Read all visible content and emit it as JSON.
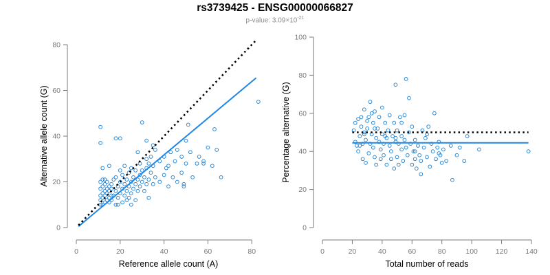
{
  "header": {
    "title": "rs3739425 - ENSG00000066827",
    "pvalue_prefix": "p-value: 3.09×10",
    "pvalue_exp": "-21"
  },
  "colors": {
    "points": "#2b8ad6",
    "fit_line": "#1f86e6",
    "ref_line": "#000000",
    "axis": "#7a7a7a"
  },
  "chart_data": [
    {
      "type": "scatter",
      "xlabel": "Reference allele count (A)",
      "ylabel": "Alternative allele count (G)",
      "xlim": [
        0,
        84
      ],
      "ylim": [
        0,
        80
      ],
      "xticks": [
        0,
        20,
        40,
        60,
        80
      ],
      "yticks": [
        0,
        20,
        40,
        60,
        80
      ],
      "grid": false,
      "reference_line": {
        "style": "dotted",
        "x": [
          1,
          82
        ],
        "y": [
          1,
          82
        ]
      },
      "fit_line": {
        "style": "solid",
        "x": [
          1,
          82
        ],
        "y": [
          0.5,
          65.5
        ]
      },
      "points": [
        [
          11,
          10
        ],
        [
          11,
          12
        ],
        [
          11,
          14
        ],
        [
          11,
          17
        ],
        [
          11,
          20
        ],
        [
          12,
          10
        ],
        [
          12,
          13
        ],
        [
          12,
          15
        ],
        [
          12,
          18
        ],
        [
          12,
          21
        ],
        [
          13,
          11
        ],
        [
          13,
          14
        ],
        [
          13,
          16
        ],
        [
          13,
          19
        ],
        [
          13,
          21
        ],
        [
          14,
          12
        ],
        [
          14,
          15
        ],
        [
          14,
          17
        ],
        [
          14,
          20
        ],
        [
          15,
          11
        ],
        [
          15,
          13
        ],
        [
          15,
          16
        ],
        [
          15,
          18
        ],
        [
          16,
          12
        ],
        [
          16,
          14
        ],
        [
          16,
          17
        ],
        [
          16,
          19
        ],
        [
          17,
          14
        ],
        [
          17,
          21
        ],
        [
          18,
          10
        ],
        [
          18,
          16
        ],
        [
          18,
          22
        ],
        [
          19,
          10
        ],
        [
          19,
          13
        ],
        [
          19,
          18
        ],
        [
          20,
          15
        ],
        [
          20,
          20
        ],
        [
          20,
          25
        ],
        [
          21,
          11
        ],
        [
          21,
          17
        ],
        [
          21,
          23
        ],
        [
          22,
          14
        ],
        [
          22,
          19
        ],
        [
          22,
          27
        ],
        [
          23,
          12
        ],
        [
          23,
          16
        ],
        [
          23,
          21
        ],
        [
          24,
          13
        ],
        [
          24,
          18
        ],
        [
          24,
          24
        ],
        [
          25,
          10
        ],
        [
          25,
          15
        ],
        [
          25,
          20
        ],
        [
          25,
          26
        ],
        [
          26,
          17
        ],
        [
          26,
          22
        ],
        [
          27,
          12
        ],
        [
          27,
          19
        ],
        [
          27,
          25
        ],
        [
          28,
          16
        ],
        [
          28,
          21
        ],
        [
          29,
          18
        ],
        [
          29,
          23
        ],
        [
          29,
          28
        ],
        [
          30,
          20
        ],
        [
          30,
          25
        ],
        [
          31,
          16
        ],
        [
          31,
          22
        ],
        [
          32,
          19
        ],
        [
          32,
          26
        ],
        [
          32,
          30
        ],
        [
          33,
          13
        ],
        [
          33,
          21
        ],
        [
          33,
          28
        ],
        [
          34,
          24
        ],
        [
          34,
          31
        ],
        [
          35,
          19
        ],
        [
          35,
          27
        ],
        [
          36,
          22
        ],
        [
          36,
          34
        ],
        [
          38,
          20
        ],
        [
          38,
          29
        ],
        [
          40,
          23
        ],
        [
          40,
          31
        ],
        [
          41,
          26
        ],
        [
          42,
          18
        ],
        [
          42,
          27
        ],
        [
          43,
          33
        ],
        [
          44,
          22
        ],
        [
          45,
          29
        ],
        [
          46,
          20
        ],
        [
          46,
          34
        ],
        [
          48,
          24
        ],
        [
          48,
          31
        ],
        [
          49,
          18
        ],
        [
          49,
          19
        ],
        [
          50,
          28
        ],
        [
          50,
          38
        ],
        [
          51,
          45
        ],
        [
          52,
          33
        ],
        [
          53,
          22
        ],
        [
          55,
          28
        ],
        [
          56,
          31
        ],
        [
          58,
          28
        ],
        [
          58,
          29
        ],
        [
          60,
          35
        ],
        [
          62,
          27
        ],
        [
          63,
          43
        ],
        [
          64,
          34
        ],
        [
          66,
          22
        ],
        [
          11,
          44
        ],
        [
          11,
          37
        ],
        [
          18,
          39
        ],
        [
          20,
          39
        ],
        [
          28,
          33
        ],
        [
          30,
          46
        ],
        [
          12,
          26
        ],
        [
          15,
          27
        ],
        [
          35,
          36
        ],
        [
          32,
          38
        ],
        [
          83,
          55
        ]
      ]
    },
    {
      "type": "scatter",
      "xlabel": "Total number of reads",
      "ylabel": "Percentage alternative (G)",
      "xlim": [
        0,
        140
      ],
      "ylim": [
        0,
        100
      ],
      "xticks": [
        0,
        20,
        40,
        60,
        80,
        100,
        120,
        140
      ],
      "yticks": [
        0,
        20,
        40,
        60,
        80,
        100
      ],
      "grid": false,
      "reference_line": {
        "style": "dotted",
        "x": [
          20,
          138
        ],
        "y": [
          50,
          50
        ]
      },
      "fit_line": {
        "style": "solid",
        "x": [
          20,
          138
        ],
        "y": [
          44.5,
          44.5
        ]
      },
      "points": [
        [
          21,
          51
        ],
        [
          22,
          45
        ],
        [
          22,
          55
        ],
        [
          23,
          43
        ],
        [
          24,
          40
        ],
        [
          24,
          57
        ],
        [
          25,
          48
        ],
        [
          26,
          53
        ],
        [
          26,
          58
        ],
        [
          27,
          44
        ],
        [
          27,
          36
        ],
        [
          28,
          50
        ],
        [
          28,
          62
        ],
        [
          29,
          34
        ],
        [
          29,
          46
        ],
        [
          30,
          56
        ],
        [
          30,
          52
        ],
        [
          31,
          39
        ],
        [
          31,
          58
        ],
        [
          32,
          44
        ],
        [
          32,
          66
        ],
        [
          33,
          60
        ],
        [
          33,
          49
        ],
        [
          34,
          42
        ],
        [
          34,
          55
        ],
        [
          35,
          37
        ],
        [
          35,
          61
        ],
        [
          36,
          47
        ],
        [
          36,
          33
        ],
        [
          37,
          52
        ],
        [
          38,
          45
        ],
        [
          38,
          58
        ],
        [
          39,
          41
        ],
        [
          39,
          36
        ],
        [
          40,
          49
        ],
        [
          40,
          63
        ],
        [
          41,
          44
        ],
        [
          41,
          38
        ],
        [
          42,
          55
        ],
        [
          43,
          47
        ],
        [
          43,
          33
        ],
        [
          44,
          51
        ],
        [
          45,
          43
        ],
        [
          45,
          59
        ],
        [
          46,
          40
        ],
        [
          46,
          36
        ],
        [
          47,
          48
        ],
        [
          48,
          31
        ],
        [
          48,
          55
        ],
        [
          49,
          45
        ],
        [
          49,
          75
        ],
        [
          50,
          37
        ],
        [
          50,
          51
        ],
        [
          51,
          44
        ],
        [
          51,
          33
        ],
        [
          52,
          58
        ],
        [
          53,
          41
        ],
        [
          53,
          48
        ],
        [
          54,
          35
        ],
        [
          55,
          46
        ],
        [
          55,
          59
        ],
        [
          56,
          42
        ],
        [
          56,
          78
        ],
        [
          57,
          38
        ],
        [
          58,
          50
        ],
        [
          58,
          68
        ],
        [
          59,
          44
        ],
        [
          60,
          33
        ],
        [
          60,
          53
        ],
        [
          61,
          40
        ],
        [
          62,
          46
        ],
        [
          62,
          36
        ],
        [
          63,
          31
        ],
        [
          64,
          43
        ],
        [
          65,
          38
        ],
        [
          66,
          35
        ],
        [
          67,
          51
        ],
        [
          68,
          42
        ],
        [
          69,
          47
        ],
        [
          70,
          37
        ],
        [
          71,
          53
        ],
        [
          72,
          32
        ],
        [
          73,
          44
        ],
        [
          74,
          40
        ],
        [
          75,
          60
        ],
        [
          76,
          36
        ],
        [
          77,
          42
        ],
        [
          78,
          45
        ],
        [
          79,
          38
        ],
        [
          80,
          34
        ],
        [
          81,
          41
        ],
        [
          83,
          35
        ],
        [
          86,
          43
        ],
        [
          87,
          25
        ],
        [
          90,
          38
        ],
        [
          92,
          42
        ],
        [
          95,
          35
        ],
        [
          97,
          48
        ],
        [
          105,
          41
        ],
        [
          138,
          40
        ],
        [
          25,
          43
        ],
        [
          28,
          49
        ],
        [
          35,
          52
        ],
        [
          42,
          48
        ],
        [
          53,
          55
        ],
        [
          66,
          28
        ],
        [
          70,
          49
        ],
        [
          78,
          39
        ],
        [
          49,
          47
        ],
        [
          62,
          40
        ]
      ]
    }
  ]
}
